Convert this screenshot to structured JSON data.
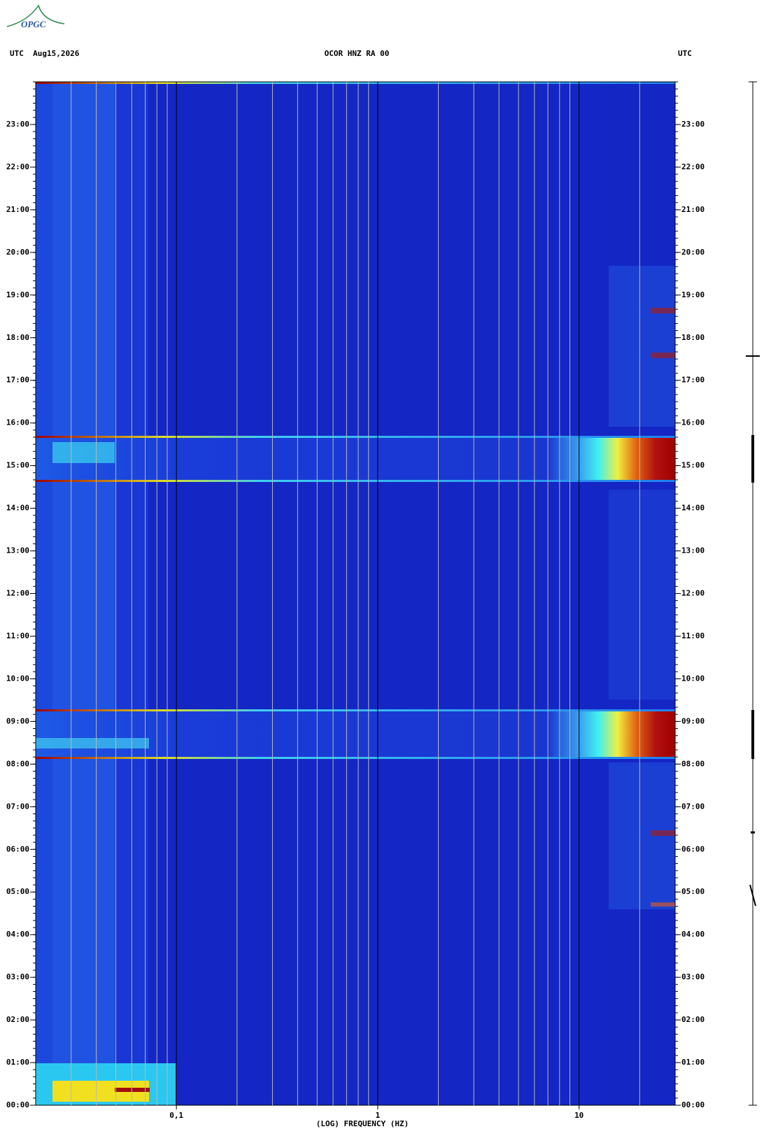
{
  "chart_data": {
    "type": "spectrogram",
    "logo": "OPGC",
    "title": "OCOR HNZ RA 00",
    "left_header": "UTC  Aug15,2026",
    "right_header": "UTC",
    "xlabel": "(LOG) FREQUENCY (HZ)",
    "xscale": "log",
    "xlim": [
      0.02,
      30
    ],
    "xticks": [
      {
        "value": 0.1,
        "label": "0,1"
      },
      1,
      10
    ],
    "xgrid": [
      0.03,
      0.04,
      0.05,
      0.06,
      0.07,
      0.08,
      0.09,
      0.2,
      0.3,
      0.4,
      0.5,
      0.6,
      0.7,
      0.8,
      0.9,
      2,
      3,
      4,
      5,
      6,
      7,
      8,
      9,
      20
    ],
    "ylim": [
      0,
      24
    ],
    "yticks": [
      {
        "value": 0,
        "label": "00:00"
      },
      {
        "value": 1,
        "label": "01:00"
      },
      {
        "value": 2,
        "label": "02:00"
      },
      {
        "value": 3,
        "label": "03:00"
      },
      {
        "value": 4,
        "label": "04:00"
      },
      {
        "value": 5,
        "label": "05:00"
      },
      {
        "value": 6,
        "label": "06:00"
      },
      {
        "value": 7,
        "label": "07:00"
      },
      {
        "value": 8,
        "label": "08:00"
      },
      {
        "value": 9,
        "label": "09:00"
      },
      {
        "value": 10,
        "label": "10:00"
      },
      {
        "value": 11,
        "label": "11:00"
      },
      {
        "value": 12,
        "label": "12:00"
      },
      {
        "value": 13,
        "label": "13:00"
      },
      {
        "value": 14,
        "label": "14:00"
      },
      {
        "value": 15,
        "label": "15:00"
      },
      {
        "value": 16,
        "label": "16:00"
      },
      {
        "value": 17,
        "label": "17:00"
      },
      {
        "value": 18,
        "label": "18:00"
      },
      {
        "value": 19,
        "label": "19:00"
      },
      {
        "value": 20,
        "label": "20:00"
      },
      {
        "value": 21,
        "label": "21:00"
      },
      {
        "value": 22,
        "label": "22:00"
      },
      {
        "value": 23,
        "label": "23:00"
      }
    ]
  }
}
